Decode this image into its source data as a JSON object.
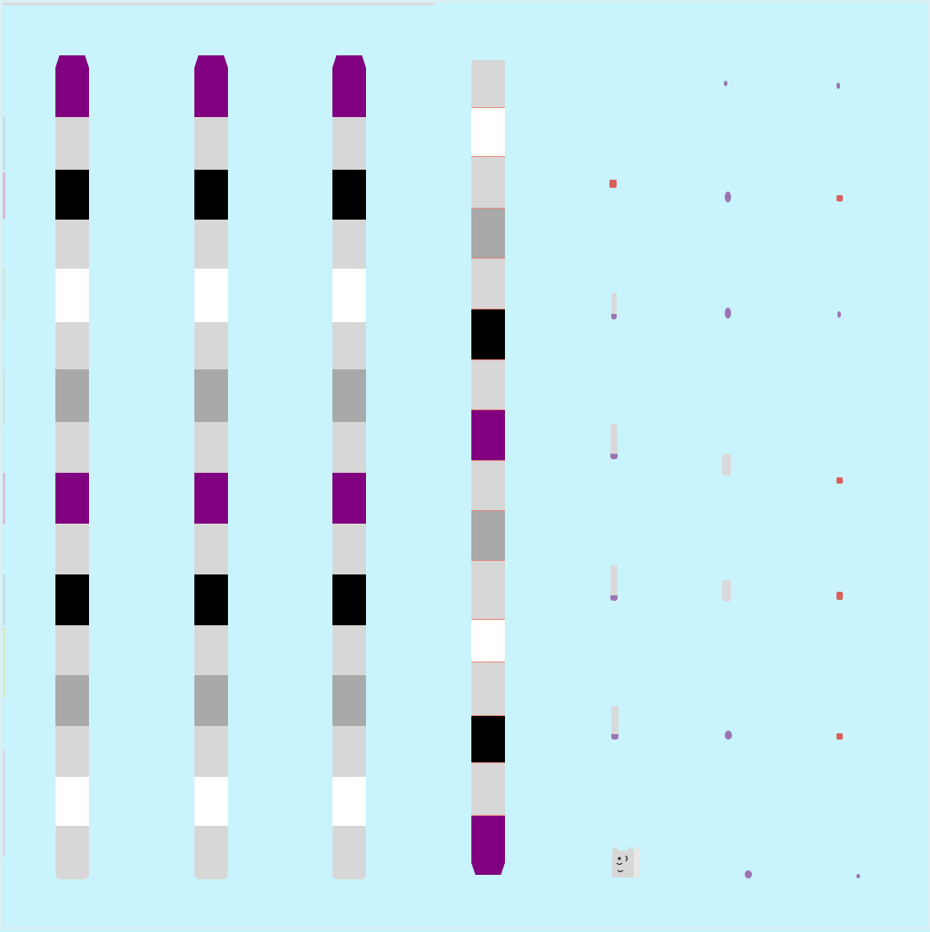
{
  "scene": {
    "background_color": "#c9f4fd",
    "border_color": "#d9f0f5",
    "top_left_strip_color": "#d7dddd"
  },
  "palette": {
    "purple": "#800080",
    "light_gray": "#d7d7d7",
    "black": "#000000",
    "white": "#ffffff",
    "mid_gray": "#a9a9a9",
    "red_marker": "#d9605c",
    "purple_marker": "#9c74b2",
    "stem_gray": "#d9d9d9"
  },
  "columns": [
    {
      "name": "pole-1",
      "pattern": [
        "purple",
        "light_gray",
        "black",
        "light_gray",
        "white",
        "light_gray",
        "mid_gray",
        "light_gray",
        "purple",
        "light_gray",
        "black",
        "light_gray",
        "mid_gray",
        "light_gray",
        "white",
        "light_gray"
      ]
    },
    {
      "name": "pole-2",
      "pattern": [
        "purple",
        "light_gray",
        "black",
        "light_gray",
        "white",
        "light_gray",
        "mid_gray",
        "light_gray",
        "purple",
        "light_gray",
        "black",
        "light_gray",
        "mid_gray",
        "light_gray",
        "white",
        "light_gray"
      ]
    },
    {
      "name": "pole-3",
      "pattern": [
        "purple",
        "light_gray",
        "black",
        "light_gray",
        "white",
        "light_gray",
        "mid_gray",
        "light_gray",
        "purple",
        "light_gray",
        "black",
        "light_gray",
        "mid_gray",
        "light_gray",
        "white",
        "light_gray"
      ]
    },
    {
      "name": "pole-4",
      "pattern": [
        "light_gray",
        "white",
        "light_gray",
        "mid_gray",
        "light_gray",
        "black",
        "light_gray",
        "purple",
        "light_gray",
        "mid_gray",
        "light_gray",
        "white",
        "light_gray",
        "black",
        "light_gray",
        "purple"
      ]
    }
  ],
  "pieces": [
    {
      "name": "purple-dot-1",
      "color": "purple_marker"
    },
    {
      "name": "purple-dot-2",
      "color": "purple_marker"
    },
    {
      "name": "red-dot-1",
      "color": "red_marker"
    },
    {
      "name": "purple-dot-3",
      "color": "purple_marker"
    },
    {
      "name": "red-dot-2",
      "color": "red_marker"
    },
    {
      "name": "stem-piece-1",
      "color": "purple_marker"
    },
    {
      "name": "purple-dot-4",
      "color": "purple_marker"
    },
    {
      "name": "purple-dot-5",
      "color": "purple_marker"
    },
    {
      "name": "stem-piece-2",
      "color": "purple_marker"
    },
    {
      "name": "gray-chip-1",
      "color": "stem_gray"
    },
    {
      "name": "red-dot-3",
      "color": "red_marker"
    },
    {
      "name": "stem-piece-3",
      "color": "purple_marker"
    },
    {
      "name": "gray-chip-2",
      "color": "stem_gray"
    },
    {
      "name": "red-dot-4",
      "color": "red_marker"
    },
    {
      "name": "stem-piece-4",
      "color": "purple_marker"
    },
    {
      "name": "purple-dot-6",
      "color": "purple_marker"
    },
    {
      "name": "red-dot-5",
      "color": "red_marker"
    },
    {
      "name": "cat-face-icon",
      "color": "stem_gray"
    },
    {
      "name": "purple-dot-7",
      "color": "purple_marker"
    },
    {
      "name": "purple-dot-8",
      "color": "purple_marker"
    }
  ]
}
